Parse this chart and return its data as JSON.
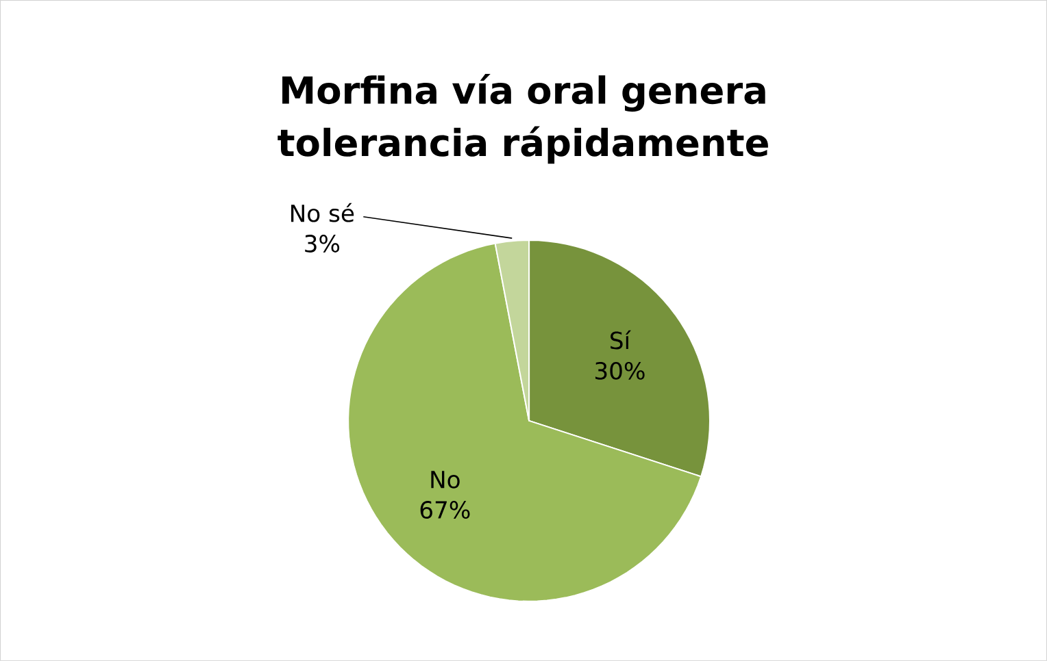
{
  "chart_data": {
    "type": "pie",
    "title": "Morfina vía oral genera tolerancia rápidamente",
    "categories": [
      "Sí",
      "No",
      "No sé"
    ],
    "values": [
      30,
      67,
      3
    ],
    "value_labels": [
      "30%",
      "67%",
      "3%"
    ],
    "colors": [
      "#77933c",
      "#9bbb59",
      "#c3d69b"
    ]
  }
}
